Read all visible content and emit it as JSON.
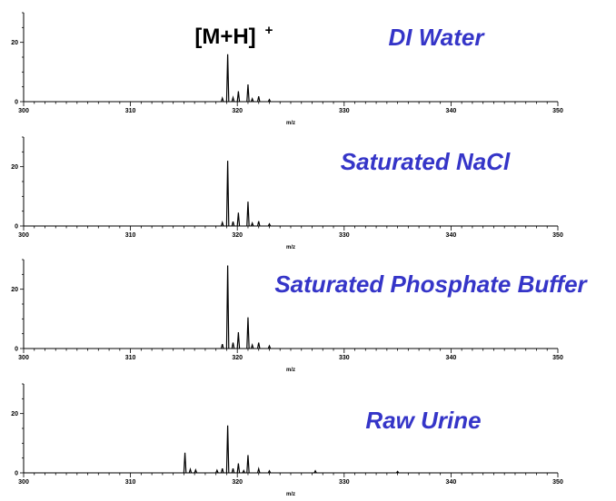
{
  "chart_data": [
    {
      "type": "line",
      "title": "DI Water",
      "xlabel": "m/z",
      "xlim": [
        300,
        350
      ],
      "xticks": [
        300,
        310,
        320,
        330,
        340,
        350
      ],
      "ylim": [
        0,
        30
      ],
      "yticks": [
        0,
        20
      ],
      "annotation": "[M+H]",
      "annotation_sup": "+",
      "peaks": [
        {
          "mz": 318.6,
          "intensity": 1.2
        },
        {
          "mz": 319.1,
          "intensity": 16
        },
        {
          "mz": 319.6,
          "intensity": 1.4
        },
        {
          "mz": 320.1,
          "intensity": 3.5
        },
        {
          "mz": 321.0,
          "intensity": 5.8
        },
        {
          "mz": 321.4,
          "intensity": 1.0
        },
        {
          "mz": 322.0,
          "intensity": 1.8
        },
        {
          "mz": 323.0,
          "intensity": 0.7
        }
      ]
    },
    {
      "type": "line",
      "title": "Saturated NaCl",
      "xlabel": "m/z",
      "xlim": [
        300,
        350
      ],
      "xticks": [
        300,
        310,
        320,
        330,
        340,
        350
      ],
      "ylim": [
        0,
        30
      ],
      "yticks": [
        0,
        20
      ],
      "peaks": [
        {
          "mz": 318.6,
          "intensity": 1.2
        },
        {
          "mz": 319.1,
          "intensity": 22
        },
        {
          "mz": 319.6,
          "intensity": 1.5
        },
        {
          "mz": 320.1,
          "intensity": 4.5
        },
        {
          "mz": 321.0,
          "intensity": 8.2
        },
        {
          "mz": 321.4,
          "intensity": 1.0
        },
        {
          "mz": 322.0,
          "intensity": 1.6
        },
        {
          "mz": 323.0,
          "intensity": 0.7
        }
      ]
    },
    {
      "type": "line",
      "title": "Saturated Phosphate Buffer",
      "xlabel": "m/z",
      "xlim": [
        300,
        350
      ],
      "xticks": [
        300,
        310,
        320,
        330,
        340,
        350
      ],
      "ylim": [
        0,
        30
      ],
      "yticks": [
        0,
        20
      ],
      "peaks": [
        {
          "mz": 318.6,
          "intensity": 1.5
        },
        {
          "mz": 319.1,
          "intensity": 28
        },
        {
          "mz": 319.6,
          "intensity": 2.0
        },
        {
          "mz": 320.1,
          "intensity": 5.5
        },
        {
          "mz": 321.0,
          "intensity": 10.5
        },
        {
          "mz": 321.4,
          "intensity": 1.2
        },
        {
          "mz": 322.0,
          "intensity": 2.0
        },
        {
          "mz": 323.0,
          "intensity": 0.9
        }
      ]
    },
    {
      "type": "line",
      "title": "Raw Urine",
      "xlabel": "m/z",
      "xlim": [
        300,
        350
      ],
      "xticks": [
        300,
        310,
        320,
        330,
        340,
        350
      ],
      "ylim": [
        0,
        30
      ],
      "yticks": [
        0,
        20
      ],
      "peaks": [
        {
          "mz": 315.1,
          "intensity": 6.8
        },
        {
          "mz": 315.6,
          "intensity": 1.2
        },
        {
          "mz": 316.1,
          "intensity": 1.0
        },
        {
          "mz": 318.1,
          "intensity": 0.9
        },
        {
          "mz": 318.6,
          "intensity": 1.5
        },
        {
          "mz": 319.1,
          "intensity": 16
        },
        {
          "mz": 319.6,
          "intensity": 1.5
        },
        {
          "mz": 320.1,
          "intensity": 3.2
        },
        {
          "mz": 320.6,
          "intensity": 0.8
        },
        {
          "mz": 321.0,
          "intensity": 6.0
        },
        {
          "mz": 322.0,
          "intensity": 1.4
        },
        {
          "mz": 323.0,
          "intensity": 0.7
        },
        {
          "mz": 327.3,
          "intensity": 0.7
        },
        {
          "mz": 335.0,
          "intensity": 0.5
        }
      ]
    }
  ]
}
